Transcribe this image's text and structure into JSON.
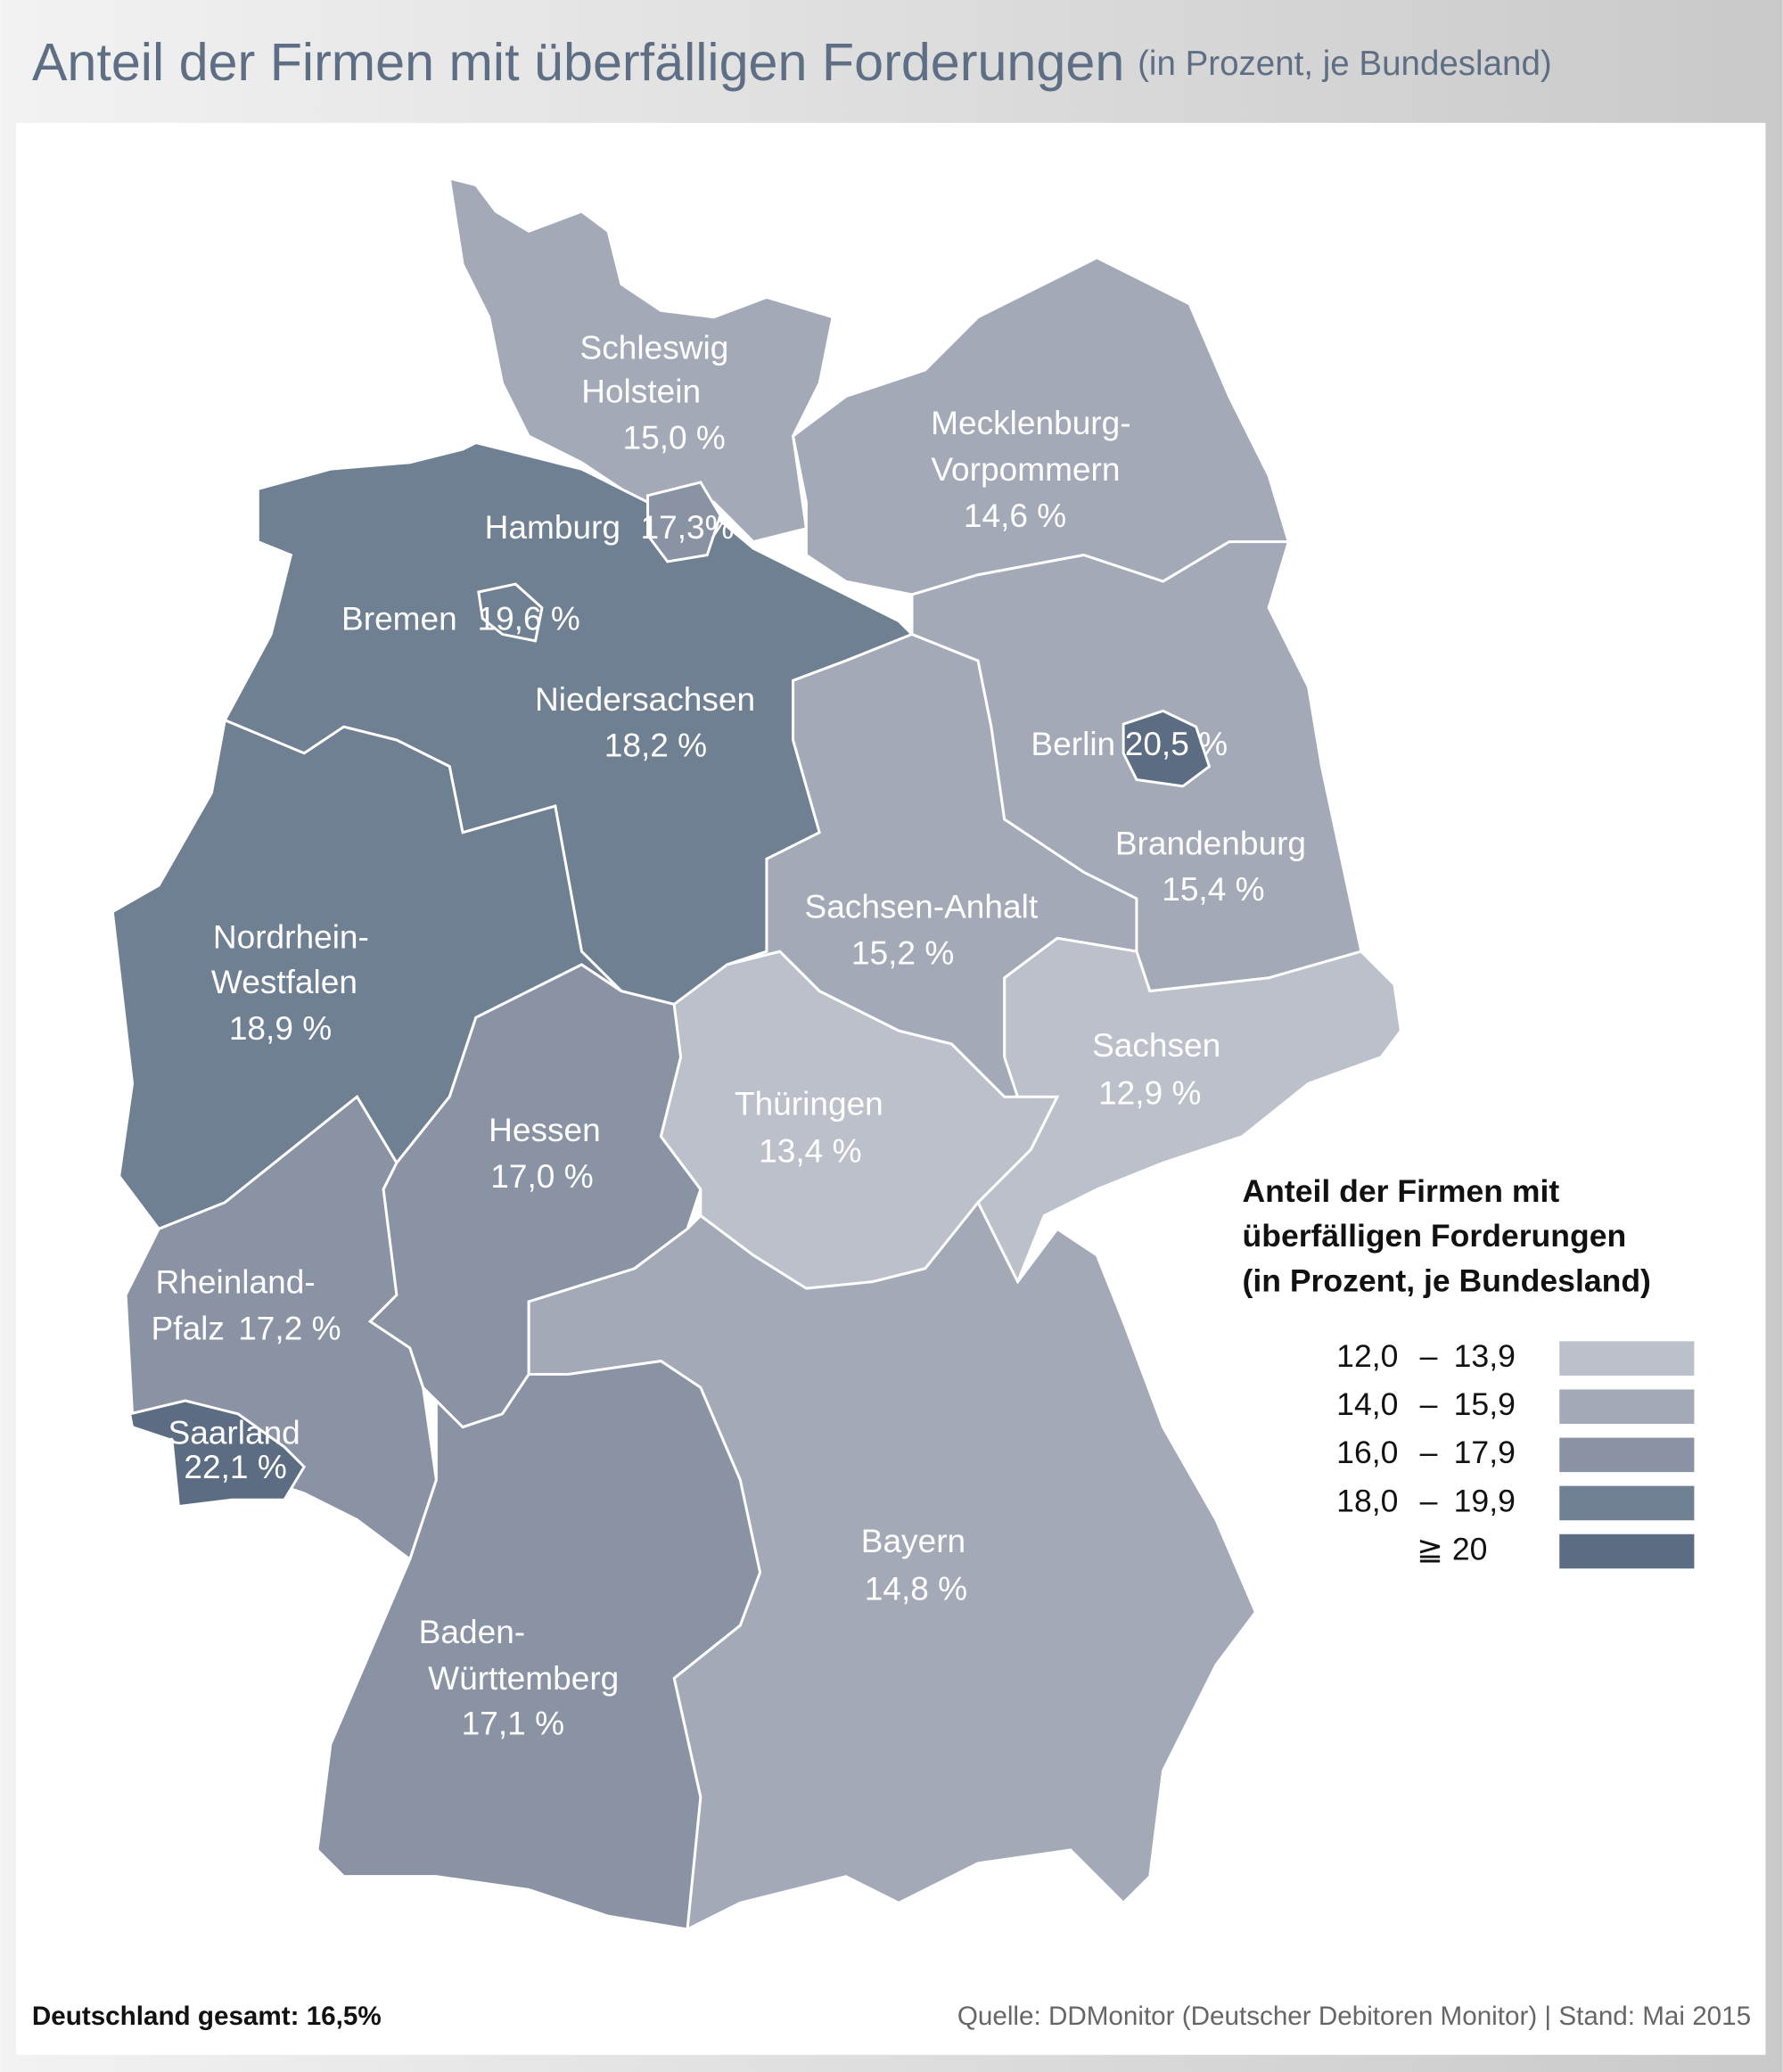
{
  "header": {
    "title": "Anteil der Firmen mit überfälligen Forderungen",
    "subtitle": "(in Prozent, je Bundesland)"
  },
  "regions": [
    {
      "name_lines": [
        "Schleswig",
        "Holstein"
      ],
      "value": 15.0,
      "value_label": "15,0 %"
    },
    {
      "name_lines": [
        "Mecklenburg-",
        "Vorpommern"
      ],
      "value": 14.6,
      "value_label": "14,6 %"
    },
    {
      "name_lines": [
        "Niedersachsen"
      ],
      "value": 18.2,
      "value_label": "18,2 %"
    },
    {
      "name_lines": [
        "Hamburg"
      ],
      "value": 17.3,
      "value_label": "17,3%"
    },
    {
      "name_lines": [
        "Bremen"
      ],
      "value": 19.6,
      "value_label": "19,6 %"
    },
    {
      "name_lines": [
        "Nordrhein-",
        "Westfalen"
      ],
      "value": 18.9,
      "value_label": "18,9 %"
    },
    {
      "name_lines": [
        "Rheinland-",
        "Pfalz"
      ],
      "value": 17.2,
      "value_label": "17,2 %"
    },
    {
      "name_lines": [
        "Saarland"
      ],
      "value": 22.1,
      "value_label": "22,1 %"
    },
    {
      "name_lines": [
        "Hessen"
      ],
      "value": 17.0,
      "value_label": "17,0 %"
    },
    {
      "name_lines": [
        "Thüringen"
      ],
      "value": 13.4,
      "value_label": "13,4 %"
    },
    {
      "name_lines": [
        "Sachsen-Anhalt"
      ],
      "value": 15.2,
      "value_label": "15,2 %"
    },
    {
      "name_lines": [
        "Brandenburg"
      ],
      "value": 15.4,
      "value_label": "15,4 %"
    },
    {
      "name_lines": [
        "Berlin"
      ],
      "value": 20.5,
      "value_label": "20,5 %"
    },
    {
      "name_lines": [
        "Sachsen"
      ],
      "value": 12.9,
      "value_label": "12,9 %"
    },
    {
      "name_lines": [
        "Bayern"
      ],
      "value": 14.8,
      "value_label": "14,8 %"
    },
    {
      "name_lines": [
        "Baden-",
        "Württemberg"
      ],
      "value": 17.1,
      "value_label": "17,1 %"
    }
  ],
  "legend": {
    "title_lines": [
      "Anteil der Firmen mit",
      "überfälligen Forderungen",
      "(in Prozent, je Bundesland)"
    ],
    "dash": "–",
    "items": [
      {
        "from": {
          "value": 12.0,
          "label": "12,0"
        },
        "to": {
          "value": 13.9,
          "label": "13,9"
        },
        "color": "#bcc0cb"
      },
      {
        "from": {
          "value": 14.0,
          "label": "14,0"
        },
        "to": {
          "value": 15.9,
          "label": "15,9"
        },
        "color": "#a3a9b6"
      },
      {
        "from": {
          "value": 16.0,
          "label": "16,0"
        },
        "to": {
          "value": 17.9,
          "label": "17,9"
        },
        "color": "#8a93a4"
      },
      {
        "from": {
          "value": 18.0,
          "label": "18,0"
        },
        "to": {
          "value": 19.9,
          "label": "19,9"
        },
        "color": "#708093"
      },
      {
        "from": {
          "value": 20,
          "label": "≧ 20"
        },
        "color": "#5b6c83"
      }
    ]
  },
  "footer": {
    "total": "Deutschland gesamt: 16,5%",
    "source": "Quelle: DDMonitor (Deutscher Debitoren Monitor) | Stand: Mai 2015"
  }
}
